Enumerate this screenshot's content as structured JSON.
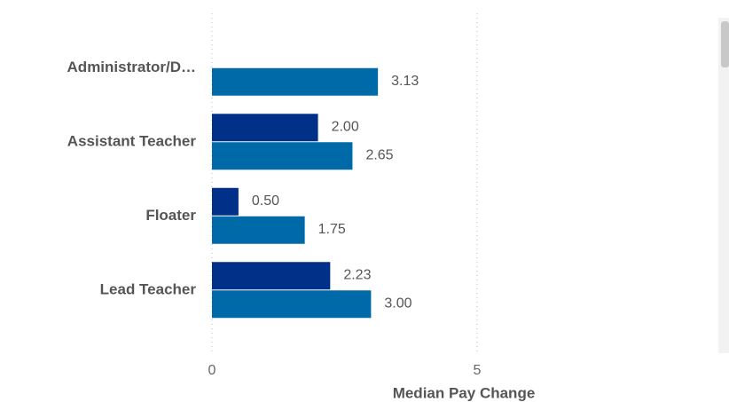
{
  "chart_data": {
    "type": "barh",
    "x_label": "Median Pay Change",
    "categories": [
      "Administrator/D…",
      "Assistant Teacher",
      "Floater",
      "Lead Teacher"
    ],
    "series": [
      {
        "color": "#003087",
        "values": [
          null,
          2.0,
          0.5,
          2.23
        ],
        "value_labels": [
          null,
          "2.00",
          "0.50",
          "2.23"
        ]
      },
      {
        "color": "#0069a8",
        "values": [
          3.13,
          2.65,
          1.75,
          3.0
        ],
        "value_labels": [
          "3.13",
          "2.65",
          "1.75",
          "3.00"
        ]
      }
    ],
    "xlim": [
      0,
      9.5
    ],
    "xticks": [
      0,
      5
    ],
    "grid": true
  }
}
